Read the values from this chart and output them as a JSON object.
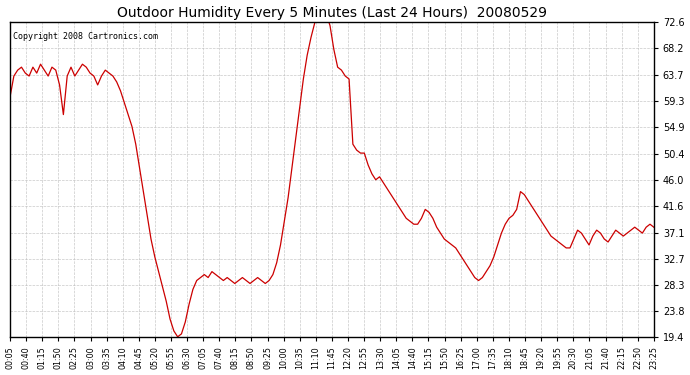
{
  "title": "Outdoor Humidity Every 5 Minutes (Last 24 Hours)  20080529",
  "copyright": "Copyright 2008 Cartronics.com",
  "line_color": "#cc0000",
  "bg_color": "#ffffff",
  "plot_bg_color": "#ffffff",
  "grid_color": "#bbbbbb",
  "yticks": [
    19.4,
    23.8,
    28.3,
    32.7,
    37.1,
    41.6,
    46.0,
    50.4,
    54.9,
    59.3,
    63.7,
    68.2,
    72.6
  ],
  "ymin": 19.4,
  "ymax": 72.6,
  "xtick_labels": [
    "00:05",
    "00:40",
    "01:15",
    "01:50",
    "02:25",
    "03:00",
    "03:35",
    "04:10",
    "04:45",
    "05:20",
    "05:55",
    "06:30",
    "07:05",
    "07:40",
    "08:15",
    "08:50",
    "09:25",
    "10:00",
    "10:35",
    "11:10",
    "11:45",
    "12:20",
    "12:55",
    "13:30",
    "14:05",
    "14:40",
    "15:15",
    "15:50",
    "16:25",
    "17:00",
    "17:35",
    "18:10",
    "18:45",
    "19:20",
    "19:55",
    "20:30",
    "21:05",
    "21:40",
    "22:15",
    "22:50",
    "23:25"
  ],
  "humidity_values": [
    60.0,
    63.5,
    64.5,
    65.0,
    64.0,
    63.5,
    65.0,
    64.0,
    65.5,
    64.5,
    63.5,
    65.0,
    64.5,
    62.0,
    57.0,
    63.5,
    65.0,
    63.5,
    64.5,
    65.5,
    65.0,
    64.0,
    63.5,
    62.0,
    63.5,
    64.5,
    64.0,
    63.5,
    62.5,
    61.0,
    59.0,
    57.0,
    55.0,
    52.0,
    48.0,
    44.0,
    40.0,
    36.0,
    33.0,
    30.5,
    28.0,
    25.5,
    22.5,
    20.5,
    19.5,
    20.0,
    22.0,
    25.0,
    27.5,
    29.0,
    29.5,
    30.0,
    29.5,
    30.5,
    30.0,
    29.5,
    29.0,
    29.5,
    29.0,
    28.5,
    29.0,
    29.5,
    29.0,
    28.5,
    29.0,
    29.5,
    29.0,
    28.5,
    29.0,
    30.0,
    32.0,
    35.0,
    39.0,
    43.0,
    48.0,
    53.0,
    58.0,
    63.0,
    67.0,
    70.0,
    72.5,
    74.0,
    73.5,
    74.0,
    72.0,
    68.0,
    65.0,
    64.5,
    63.5,
    63.0,
    52.0,
    51.0,
    50.5,
    50.5,
    48.5,
    47.0,
    46.0,
    46.5,
    45.5,
    44.5,
    43.5,
    42.5,
    41.5,
    40.5,
    39.5,
    39.0,
    38.5,
    38.5,
    39.5,
    41.0,
    40.5,
    39.5,
    38.0,
    37.0,
    36.0,
    35.5,
    35.0,
    34.5,
    33.5,
    32.5,
    31.5,
    30.5,
    29.5,
    29.0,
    29.5,
    30.5,
    31.5,
    33.0,
    35.0,
    37.0,
    38.5,
    39.5,
    40.0,
    41.0,
    44.0,
    43.5,
    42.5,
    41.5,
    40.5,
    39.5,
    38.5,
    37.5,
    36.5,
    36.0,
    35.5,
    35.0,
    34.5,
    34.5,
    36.0,
    37.5,
    37.0,
    36.0,
    35.0,
    36.5,
    37.5,
    37.0,
    36.0,
    35.5,
    36.5,
    37.5,
    37.0,
    36.5,
    37.0,
    37.5,
    38.0,
    37.5,
    37.0,
    38.0,
    38.5,
    38.0
  ]
}
